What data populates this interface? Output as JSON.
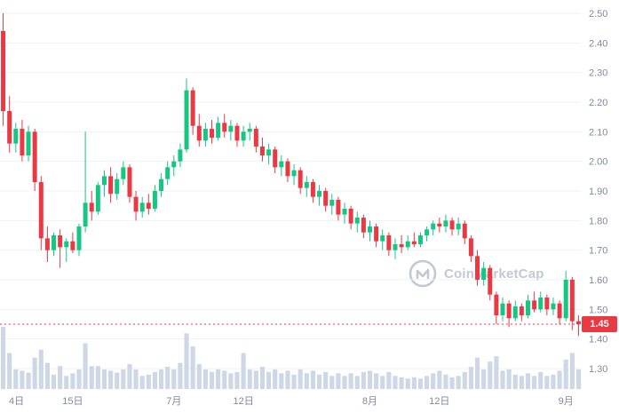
{
  "watermark": {
    "text": "CoinMarketCap"
  },
  "colors": {
    "up": "#16c784",
    "down": "#ea3943",
    "grid": "#eff2f5",
    "axis_text": "#808a9d",
    "volume": "#cdd7e5",
    "price_line": "#ea3943",
    "badge_bg": "#ea3943",
    "badge_text": "#ffffff",
    "watermark": "#c1cad4"
  },
  "chart_data": {
    "type": "candlestick",
    "title": "",
    "xlabel": "",
    "ylabel": "",
    "y_range": [
      1.3,
      2.5
    ],
    "grid": "horizontal",
    "legend": "none",
    "y_ticks": [
      "2.50",
      "2.40",
      "2.30",
      "2.20",
      "2.10",
      "2.00",
      "1.90",
      "1.80",
      "1.70",
      "1.60",
      "1.50",
      "1.40",
      "1.30"
    ],
    "x_ticks": [
      {
        "label": "4日",
        "index": 0
      },
      {
        "label": "15日",
        "index": 11
      },
      {
        "label": "7月",
        "index": 27
      },
      {
        "label": "12日",
        "index": 38
      },
      {
        "label": "8月",
        "index": 58
      },
      {
        "label": "12日",
        "index": 69
      },
      {
        "label": "9月",
        "index": 89
      }
    ],
    "current_price": 1.45,
    "current_price_label": "1.45",
    "candles": [
      [
        2.44,
        2.5,
        2.12,
        2.17
      ],
      [
        2.17,
        2.22,
        2.03,
        2.06
      ],
      [
        2.06,
        2.13,
        2.03,
        2.11
      ],
      [
        2.11,
        2.14,
        2.0,
        2.02
      ],
      [
        2.02,
        2.12,
        2.0,
        2.1
      ],
      [
        2.1,
        2.11,
        1.9,
        1.93
      ],
      [
        1.93,
        1.95,
        1.7,
        1.74
      ],
      [
        1.74,
        1.78,
        1.66,
        1.7
      ],
      [
        1.7,
        1.76,
        1.68,
        1.75
      ],
      [
        1.75,
        1.77,
        1.64,
        1.71
      ],
      [
        1.71,
        1.74,
        1.66,
        1.73
      ],
      [
        1.73,
        1.76,
        1.69,
        1.7
      ],
      [
        1.7,
        1.79,
        1.68,
        1.78
      ],
      [
        1.78,
        2.1,
        1.76,
        1.86
      ],
      [
        1.86,
        1.9,
        1.8,
        1.83
      ],
      [
        1.83,
        1.93,
        1.82,
        1.92
      ],
      [
        1.92,
        1.97,
        1.88,
        1.95
      ],
      [
        1.95,
        1.98,
        1.86,
        1.89
      ],
      [
        1.89,
        1.96,
        1.87,
        1.94
      ],
      [
        1.94,
        2.0,
        1.92,
        1.98
      ],
      [
        1.98,
        1.99,
        1.86,
        1.88
      ],
      [
        1.88,
        1.9,
        1.8,
        1.83
      ],
      [
        1.83,
        1.88,
        1.81,
        1.86
      ],
      [
        1.86,
        1.89,
        1.82,
        1.84
      ],
      [
        1.84,
        1.92,
        1.83,
        1.9
      ],
      [
        1.9,
        1.96,
        1.88,
        1.94
      ],
      [
        1.94,
        2.0,
        1.92,
        1.98
      ],
      [
        1.98,
        2.02,
        1.95,
        2.0
      ],
      [
        2.0,
        2.06,
        1.98,
        2.04
      ],
      [
        2.04,
        2.28,
        2.03,
        2.24
      ],
      [
        2.24,
        2.25,
        2.09,
        2.12
      ],
      [
        2.12,
        2.16,
        2.05,
        2.07
      ],
      [
        2.07,
        2.13,
        2.05,
        2.11
      ],
      [
        2.11,
        2.14,
        2.06,
        2.08
      ],
      [
        2.08,
        2.15,
        2.07,
        2.13
      ],
      [
        2.13,
        2.16,
        2.08,
        2.1
      ],
      [
        2.1,
        2.14,
        2.07,
        2.12
      ],
      [
        2.12,
        2.13,
        2.05,
        2.07
      ],
      [
        2.07,
        2.12,
        2.05,
        2.1
      ],
      [
        2.1,
        2.13,
        2.07,
        2.11
      ],
      [
        2.11,
        2.12,
        2.03,
        2.05
      ],
      [
        2.05,
        2.08,
        2.0,
        2.02
      ],
      [
        2.02,
        2.06,
        1.99,
        2.04
      ],
      [
        2.04,
        2.05,
        1.96,
        1.98
      ],
      [
        1.98,
        2.02,
        1.95,
        2.0
      ],
      [
        2.0,
        2.01,
        1.93,
        1.95
      ],
      [
        1.95,
        1.99,
        1.92,
        1.97
      ],
      [
        1.97,
        1.98,
        1.89,
        1.91
      ],
      [
        1.91,
        1.95,
        1.88,
        1.93
      ],
      [
        1.93,
        1.94,
        1.86,
        1.88
      ],
      [
        1.88,
        1.92,
        1.85,
        1.9
      ],
      [
        1.9,
        1.91,
        1.83,
        1.85
      ],
      [
        1.85,
        1.89,
        1.82,
        1.87
      ],
      [
        1.87,
        1.88,
        1.8,
        1.82
      ],
      [
        1.82,
        1.86,
        1.79,
        1.84
      ],
      [
        1.84,
        1.85,
        1.77,
        1.79
      ],
      [
        1.79,
        1.83,
        1.76,
        1.81
      ],
      [
        1.81,
        1.82,
        1.74,
        1.76
      ],
      [
        1.76,
        1.8,
        1.73,
        1.78
      ],
      [
        1.78,
        1.79,
        1.71,
        1.73
      ],
      [
        1.73,
        1.77,
        1.7,
        1.75
      ],
      [
        1.75,
        1.76,
        1.68,
        1.7
      ],
      [
        1.7,
        1.74,
        1.67,
        1.72
      ],
      [
        1.72,
        1.75,
        1.69,
        1.71
      ],
      [
        1.71,
        1.75,
        1.7,
        1.73
      ],
      [
        1.73,
        1.76,
        1.71,
        1.72
      ],
      [
        1.72,
        1.76,
        1.71,
        1.75
      ],
      [
        1.75,
        1.78,
        1.73,
        1.77
      ],
      [
        1.77,
        1.8,
        1.75,
        1.79
      ],
      [
        1.79,
        1.81,
        1.76,
        1.78
      ],
      [
        1.78,
        1.82,
        1.76,
        1.8
      ],
      [
        1.8,
        1.81,
        1.75,
        1.77
      ],
      [
        1.77,
        1.81,
        1.75,
        1.79
      ],
      [
        1.79,
        1.8,
        1.72,
        1.74
      ],
      [
        1.74,
        1.75,
        1.66,
        1.68
      ],
      [
        1.68,
        1.7,
        1.58,
        1.6
      ],
      [
        1.6,
        1.66,
        1.58,
        1.64
      ],
      [
        1.64,
        1.65,
        1.53,
        1.55
      ],
      [
        1.55,
        1.56,
        1.45,
        1.48
      ],
      [
        1.48,
        1.54,
        1.46,
        1.52
      ],
      [
        1.52,
        1.53,
        1.44,
        1.47
      ],
      [
        1.47,
        1.53,
        1.46,
        1.51
      ],
      [
        1.51,
        1.52,
        1.46,
        1.48
      ],
      [
        1.48,
        1.55,
        1.47,
        1.53
      ],
      [
        1.53,
        1.56,
        1.49,
        1.5
      ],
      [
        1.5,
        1.56,
        1.49,
        1.54
      ],
      [
        1.54,
        1.55,
        1.48,
        1.5
      ],
      [
        1.5,
        1.54,
        1.48,
        1.52
      ],
      [
        1.52,
        1.53,
        1.45,
        1.47
      ],
      [
        1.47,
        1.63,
        1.46,
        1.6
      ],
      [
        1.6,
        1.61,
        1.43,
        1.46
      ],
      [
        1.46,
        1.48,
        1.41,
        1.45
      ]
    ],
    "volumes": [
      95,
      55,
      30,
      28,
      25,
      48,
      60,
      40,
      22,
      35,
      20,
      24,
      30,
      70,
      35,
      35,
      30,
      28,
      25,
      30,
      38,
      30,
      20,
      22,
      26,
      30,
      34,
      30,
      40,
      85,
      65,
      38,
      30,
      26,
      30,
      28,
      24,
      26,
      55,
      30,
      28,
      34,
      26,
      30,
      24,
      28,
      22,
      30,
      24,
      28,
      22,
      26,
      20,
      24,
      20,
      24,
      20,
      26,
      28,
      24,
      20,
      26,
      20,
      18,
      16,
      18,
      16,
      20,
      24,
      28,
      22,
      18,
      20,
      26,
      34,
      48,
      30,
      42,
      50,
      28,
      30,
      22,
      20,
      24,
      20,
      26,
      20,
      22,
      28,
      45,
      55,
      30
    ]
  }
}
